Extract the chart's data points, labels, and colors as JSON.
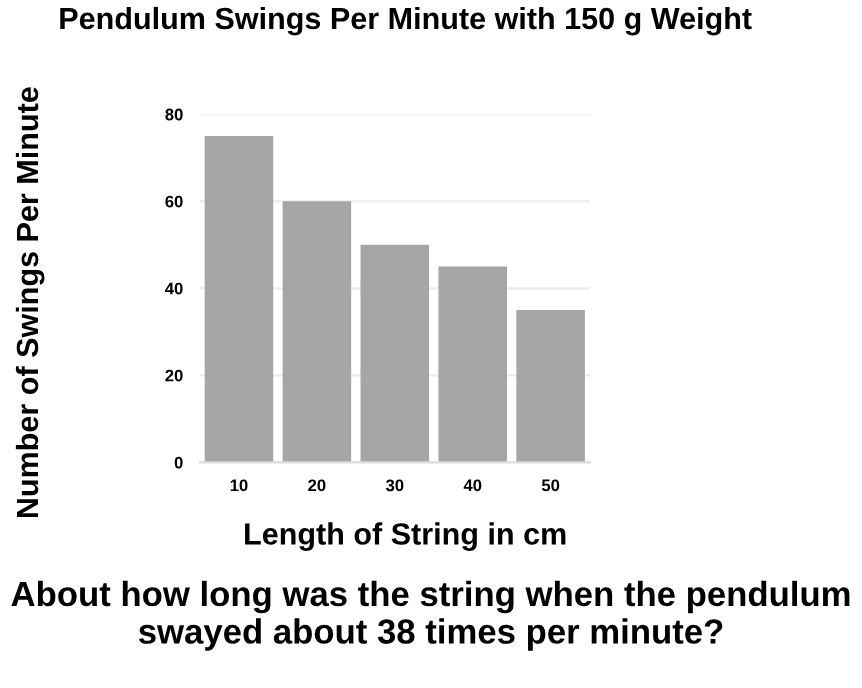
{
  "chart_data": {
    "type": "bar",
    "title": "Pendulum Swings Per Minute with 150 g Weight",
    "xlabel": "Length of String in cm",
    "ylabel": "Number of Swings Per Minute",
    "categories": [
      "10",
      "20",
      "30",
      "40",
      "50"
    ],
    "values": [
      75,
      60,
      50,
      45,
      35
    ],
    "color": "#a6a6a6",
    "ylim": [
      0,
      80
    ],
    "yticks": [
      0,
      20,
      40,
      60,
      80
    ],
    "grid": "y",
    "annotations": [
      "About how long was the string when the pendulum swayed about 38 times per minute?"
    ]
  }
}
